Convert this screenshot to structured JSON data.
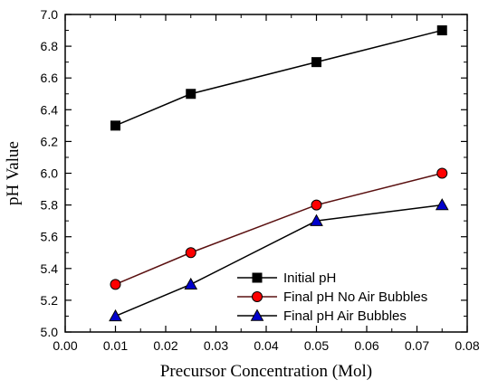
{
  "chart_data": {
    "type": "line",
    "xlabel": "Precursor Concentration (Mol)",
    "ylabel": "pH Value",
    "xlim": [
      0.0,
      0.08
    ],
    "ylim": [
      5.0,
      7.0
    ],
    "xticks": [
      "0.00",
      "0.01",
      "0.02",
      "0.03",
      "0.04",
      "0.05",
      "0.06",
      "0.07",
      "0.08"
    ],
    "yticks": [
      "5.0",
      "5.2",
      "5.4",
      "5.6",
      "5.8",
      "6.0",
      "6.2",
      "6.4",
      "6.6",
      "6.8",
      "7.0"
    ],
    "grid": false,
    "legend_position": "bottom-right",
    "series": [
      {
        "name": "Initial pH",
        "x": [
          0.01,
          0.025,
          0.05,
          0.075
        ],
        "y": [
          6.3,
          6.5,
          6.7,
          6.9
        ],
        "marker": "square",
        "marker_color": "#000000",
        "line_color": "#000000"
      },
      {
        "name": "Final pH No Air Bubbles",
        "x": [
          0.01,
          0.025,
          0.05,
          0.075
        ],
        "y": [
          5.3,
          5.5,
          5.8,
          6.0
        ],
        "marker": "circle",
        "marker_color": "#ff0000",
        "line_color": "#5a1010"
      },
      {
        "name": "Final pH  Air Bubbles",
        "x": [
          0.01,
          0.025,
          0.05,
          0.075
        ],
        "y": [
          5.1,
          5.3,
          5.7,
          5.8
        ],
        "marker": "triangle",
        "marker_color": "#0000cc",
        "line_color": "#000000"
      }
    ]
  }
}
